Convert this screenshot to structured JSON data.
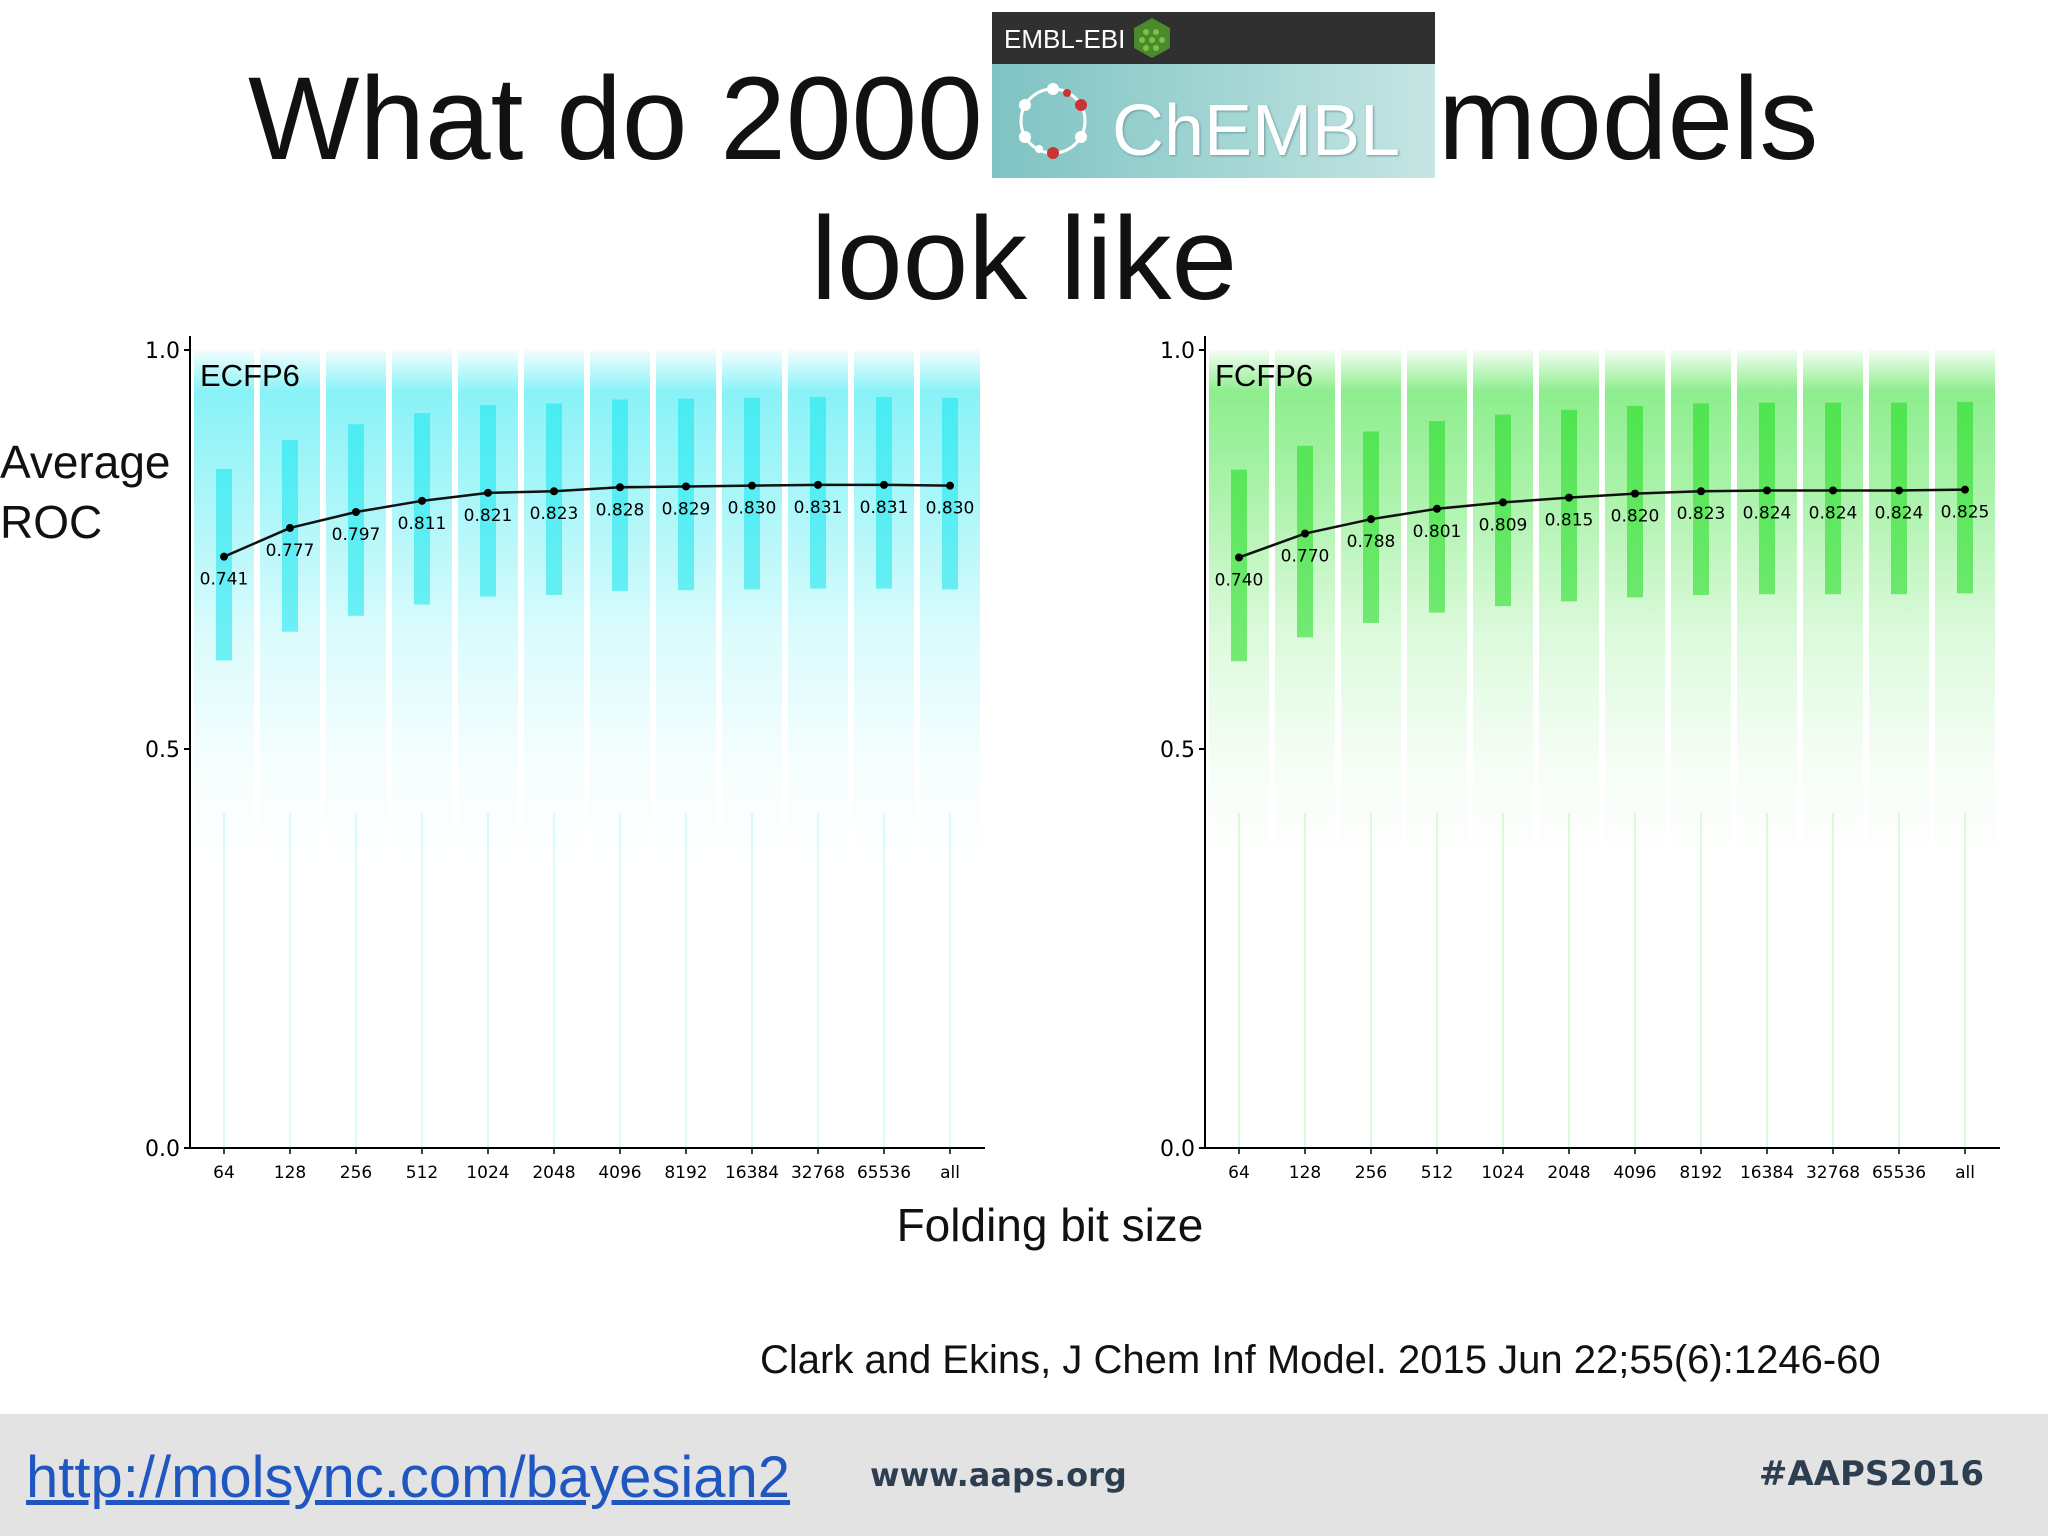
{
  "title": {
    "line1_left": "What do 2000",
    "line1_right": "models",
    "line2": "look like"
  },
  "logo": {
    "bar_text": "EMBL-EBI",
    "name": "ChEMBL"
  },
  "ylabel": "Average ROC",
  "ylabel_line1": "Average",
  "ylabel_line2": "ROC",
  "xlabel": "Folding bit size",
  "citation": "Clark and Ekins, J Chem Inf Model. 2015 Jun 22;55(6):1246-60",
  "footer": {
    "link": "http://molsync.com/bayesian2",
    "site": "www.aaps.org",
    "tag": "#AAPS2016"
  },
  "chart_data": [
    {
      "type": "line",
      "title": "ECFP6",
      "categories": [
        "64",
        "128",
        "256",
        "512",
        "1024",
        "2048",
        "4096",
        "8192",
        "16384",
        "32768",
        "65536",
        "all"
      ],
      "values": [
        0.741,
        0.777,
        0.797,
        0.811,
        0.821,
        0.823,
        0.828,
        0.829,
        0.83,
        0.831,
        0.831,
        0.83
      ],
      "value_labels": [
        "0.741",
        "0.777",
        "0.797",
        "0.811",
        "0.821",
        "0.823",
        "0.828",
        "0.829",
        "0.830",
        "0.831",
        "0.831",
        "0.830"
      ],
      "ylim": [
        0.0,
        1.0
      ],
      "yticks": [
        "0.0",
        "0.5",
        "1.0"
      ],
      "color": "#12e6ee"
    },
    {
      "type": "line",
      "title": "FCFP6",
      "categories": [
        "64",
        "128",
        "256",
        "512",
        "1024",
        "2048",
        "4096",
        "8192",
        "16384",
        "32768",
        "65536",
        "all"
      ],
      "values": [
        0.74,
        0.77,
        0.788,
        0.801,
        0.809,
        0.815,
        0.82,
        0.823,
        0.824,
        0.824,
        0.824,
        0.825
      ],
      "value_labels": [
        "0.740",
        "0.770",
        "0.788",
        "0.801",
        "0.809",
        "0.815",
        "0.820",
        "0.823",
        "0.824",
        "0.824",
        "0.824",
        "0.825"
      ],
      "ylim": [
        0.0,
        1.0
      ],
      "yticks": [
        "0.0",
        "0.5",
        "1.0"
      ],
      "color": "#1bdd1b"
    }
  ]
}
